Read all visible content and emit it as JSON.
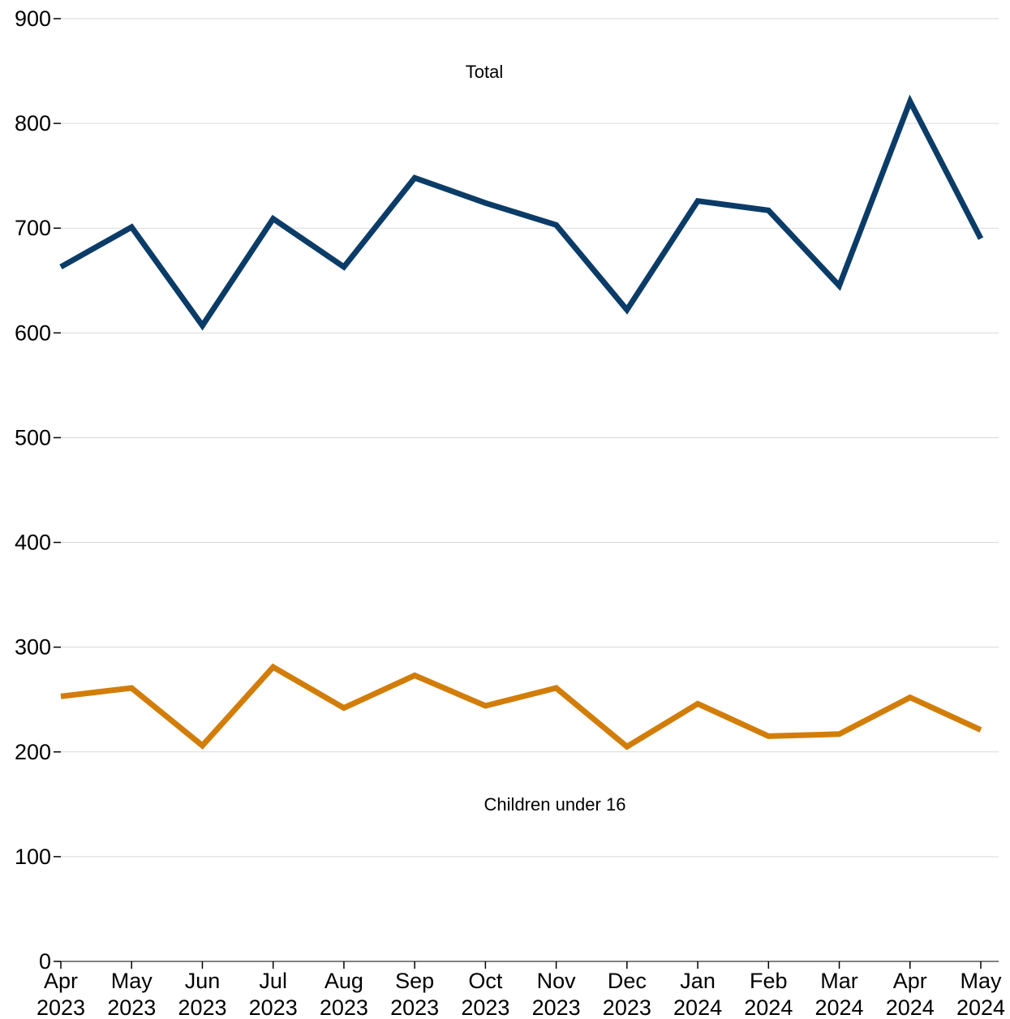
{
  "chart_data": {
    "type": "line",
    "title": "",
    "xlabel": "",
    "ylabel": "",
    "categories": [
      [
        "Apr",
        "2023"
      ],
      [
        "May",
        "2023"
      ],
      [
        "Jun",
        "2023"
      ],
      [
        "Jul",
        "2023"
      ],
      [
        "Aug",
        "2023"
      ],
      [
        "Sep",
        "2023"
      ],
      [
        "Oct",
        "2023"
      ],
      [
        "Nov",
        "2023"
      ],
      [
        "Dec",
        "2023"
      ],
      [
        "Jan",
        "2024"
      ],
      [
        "Feb",
        "2024"
      ],
      [
        "Mar",
        "2024"
      ],
      [
        "Apr",
        "2024"
      ],
      [
        "May",
        "2024"
      ]
    ],
    "ylim": [
      0,
      900
    ],
    "yticks": [
      0,
      100,
      200,
      300,
      400,
      500,
      600,
      700,
      800,
      900
    ],
    "grid": true,
    "legend": "none",
    "series": [
      {
        "name": "Total",
        "color": "#0b3c68",
        "values": [
          663,
          701,
          607,
          709,
          663,
          748,
          724,
          703,
          622,
          726,
          717,
          645,
          821,
          690
        ]
      },
      {
        "name": "Children under 16",
        "color": "#d27d07",
        "values": [
          253,
          261,
          206,
          281,
          242,
          273,
          244,
          261,
          205,
          246,
          215,
          217,
          252,
          221
        ]
      }
    ]
  }
}
